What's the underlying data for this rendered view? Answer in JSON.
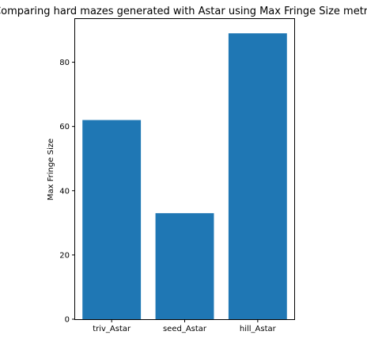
{
  "chart_data": {
    "type": "bar",
    "title": "Comparing hard mazes generated with Astar using Max Fringe Size metric",
    "xlabel": "",
    "ylabel": "Max Fringe Size",
    "categories": [
      "triv_Astar",
      "seed_Astar",
      "hill_Astar"
    ],
    "values": [
      62,
      33,
      89
    ],
    "ylim": [
      0,
      93.45
    ],
    "yticks": [
      0,
      20,
      40,
      60,
      80
    ],
    "bar_color": "#1f77b4",
    "grid": false,
    "legend": "none"
  }
}
